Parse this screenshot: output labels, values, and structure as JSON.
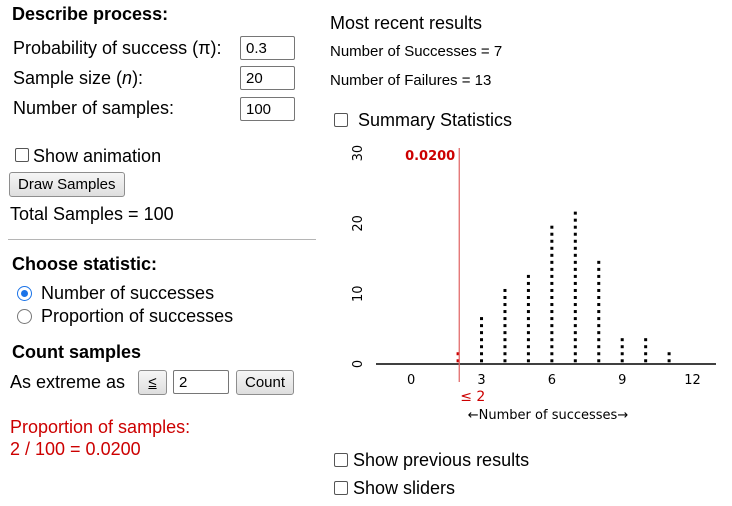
{
  "left": {
    "describe_title": "Describe process:",
    "prob_label_pre": "Probability of success (π):",
    "prob_value": "0.3",
    "sample_label_pre": "Sample size (",
    "sample_label_n": "n",
    "sample_label_post": "):",
    "sample_value": "20",
    "num_samples_label": "Number of samples:",
    "num_samples_value": "100",
    "show_animation_label": "Show animation",
    "draw_button": "Draw Samples",
    "total_samples": "Total Samples = 100",
    "choose_title": "Choose statistic:",
    "radio_successes": "Number of successes",
    "radio_proportion": "Proportion of successes",
    "count_title": "Count samples",
    "extreme_label": "As extreme as",
    "comparator": "≤",
    "extreme_value": "2",
    "count_button": "Count",
    "proportion_label": "Proportion of samples:",
    "proportion_result": "2 / 100 = 0.0200"
  },
  "right": {
    "recent_title": "Most recent results",
    "successes_text": "Number of Successes = 7",
    "failures_text": "Number of Failures = 13",
    "summary_label": "Summary Statistics",
    "show_previous_label": "Show previous results",
    "show_sliders_label": "Show sliders"
  },
  "chart_data": {
    "type": "dotplot",
    "x": [
      2,
      3,
      4,
      5,
      6,
      7,
      8,
      9,
      10,
      11
    ],
    "counts": [
      2,
      7,
      11,
      13,
      20,
      22,
      15,
      4,
      4,
      2
    ],
    "xticks": [
      "0",
      "3",
      "6",
      "9",
      "12"
    ],
    "yticks": [
      "0",
      "10",
      "20",
      "30"
    ],
    "xlabel": "←Number of successes→",
    "cutoff_value": "0.0200",
    "cutoff_label": "≤ 2",
    "cutoff_x": 2.05,
    "highlight_upto": 2,
    "xlim": [
      -1.5,
      13
    ],
    "ylim": [
      0,
      30
    ],
    "colors": {
      "dot": "#000000",
      "highlight": "#cc0000",
      "cutoff": "#e06060"
    }
  }
}
